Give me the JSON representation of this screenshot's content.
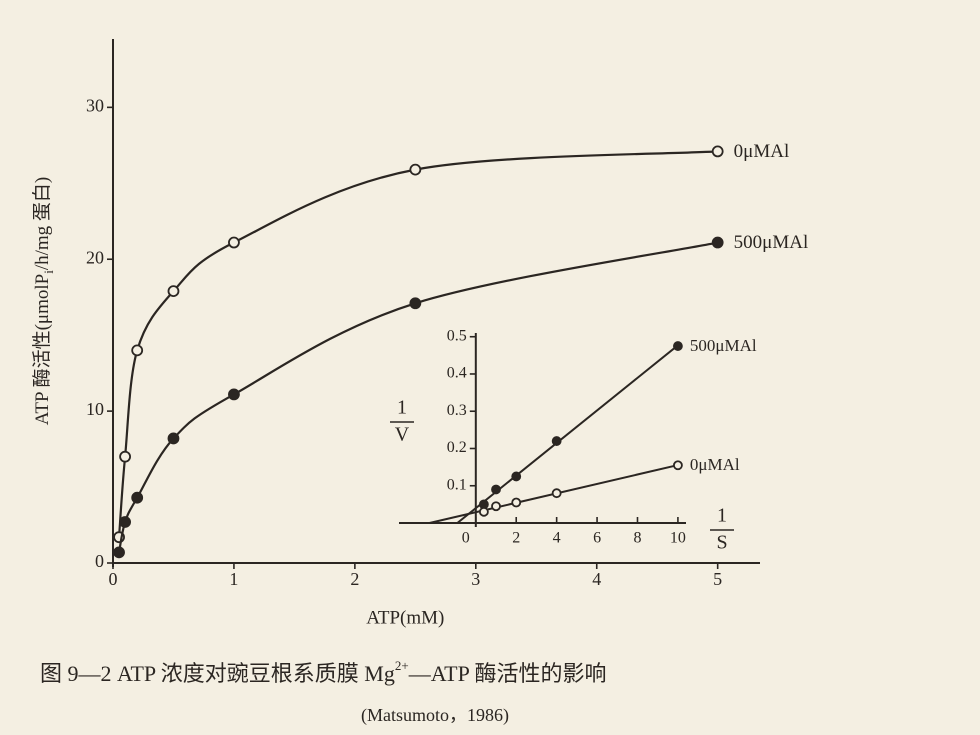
{
  "chart_data": [
    {
      "type": "line",
      "smooth": true,
      "ylabel": [
        "ATP 酶活性(μmolP",
        "i",
        "/h/mg 蛋白)"
      ],
      "xlabel": "ATP(mM)",
      "x": [
        0.05,
        0.1,
        0.2,
        0.5,
        1,
        2.5,
        5
      ],
      "series": [
        {
          "name": "0μMAl",
          "color": "#2b2622",
          "marker": "open",
          "values": [
            1.7,
            7,
            14,
            17.9,
            21.1,
            25.9,
            27.1
          ]
        },
        {
          "name": "500μMAl",
          "color": "#2b2622",
          "marker": "filled",
          "values": [
            0.7,
            2.7,
            4.3,
            8.2,
            11.1,
            17.1,
            21.1
          ]
        }
      ],
      "xlim": [
        0,
        5.35
      ],
      "ylim": [
        0,
        34.5
      ],
      "xticks": [
        0,
        1,
        2,
        3,
        4,
        5
      ],
      "yticks": [
        0,
        10,
        20,
        30
      ]
    },
    {
      "type": "scatter",
      "trendline": "linear",
      "ylabel": [
        "1",
        "V"
      ],
      "xlabel": [
        "1",
        "S"
      ],
      "x": [
        0.4,
        1,
        2,
        4,
        10
      ],
      "series": [
        {
          "name": "500μMAl",
          "color": "#2b2622",
          "marker": "filled",
          "values": [
            0.05,
            0.09,
            0.125,
            0.22,
            0.475
          ]
        },
        {
          "name": "0μMAl",
          "color": "#2b2622",
          "marker": "open",
          "values": [
            0.03,
            0.045,
            0.055,
            0.08,
            0.155
          ]
        }
      ],
      "xlim": [
        -3.8,
        10.4
      ],
      "ylim": [
        0,
        0.51
      ],
      "xticks": [
        0,
        2,
        4,
        6,
        8,
        10
      ],
      "yticks": [
        0.1,
        0.2,
        0.3,
        0.4,
        0.5
      ]
    }
  ],
  "caption": [
    "图 9—2  ATP 浓度对豌豆根系质膜 Mg",
    "2+",
    "—ATP 酶活性的影响"
  ],
  "source": "(Matsumoto，1986)"
}
